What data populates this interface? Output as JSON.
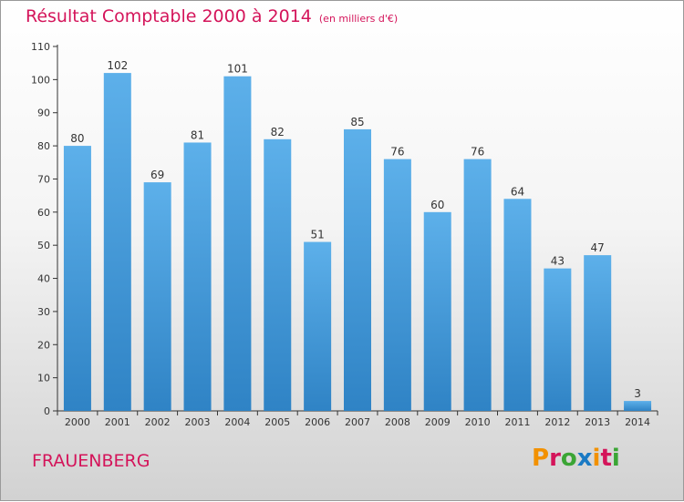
{
  "header": {
    "title": "Résultat Comptable 2000 à 2014",
    "unit": "(en milliers d'€)"
  },
  "footer": {
    "place": "FRAUENBERG",
    "logo": "Proxiti"
  },
  "colors": {
    "title": "#d4145a",
    "bar_light": "#5db0ea",
    "bar_dark": "#2f83c5",
    "logo": [
      "#f29100",
      "#d4145a",
      "#3ba535",
      "#1a7ac4",
      "#f29100",
      "#d4145a",
      "#3ba535"
    ]
  },
  "chart_data": {
    "type": "bar",
    "title": "Résultat Comptable 2000 à 2014",
    "ylabel": "",
    "xlabel": "",
    "ylim": [
      0,
      110
    ],
    "yticks": [
      0,
      10,
      20,
      30,
      40,
      50,
      60,
      70,
      80,
      90,
      100,
      110
    ],
    "categories": [
      "2000",
      "2001",
      "2002",
      "2003",
      "2004",
      "2005",
      "2006",
      "2007",
      "2008",
      "2009",
      "2010",
      "2011",
      "2012",
      "2013",
      "2014"
    ],
    "values": [
      80,
      102,
      69,
      81,
      101,
      82,
      51,
      85,
      76,
      60,
      76,
      64,
      43,
      47,
      3
    ],
    "grid": false
  }
}
